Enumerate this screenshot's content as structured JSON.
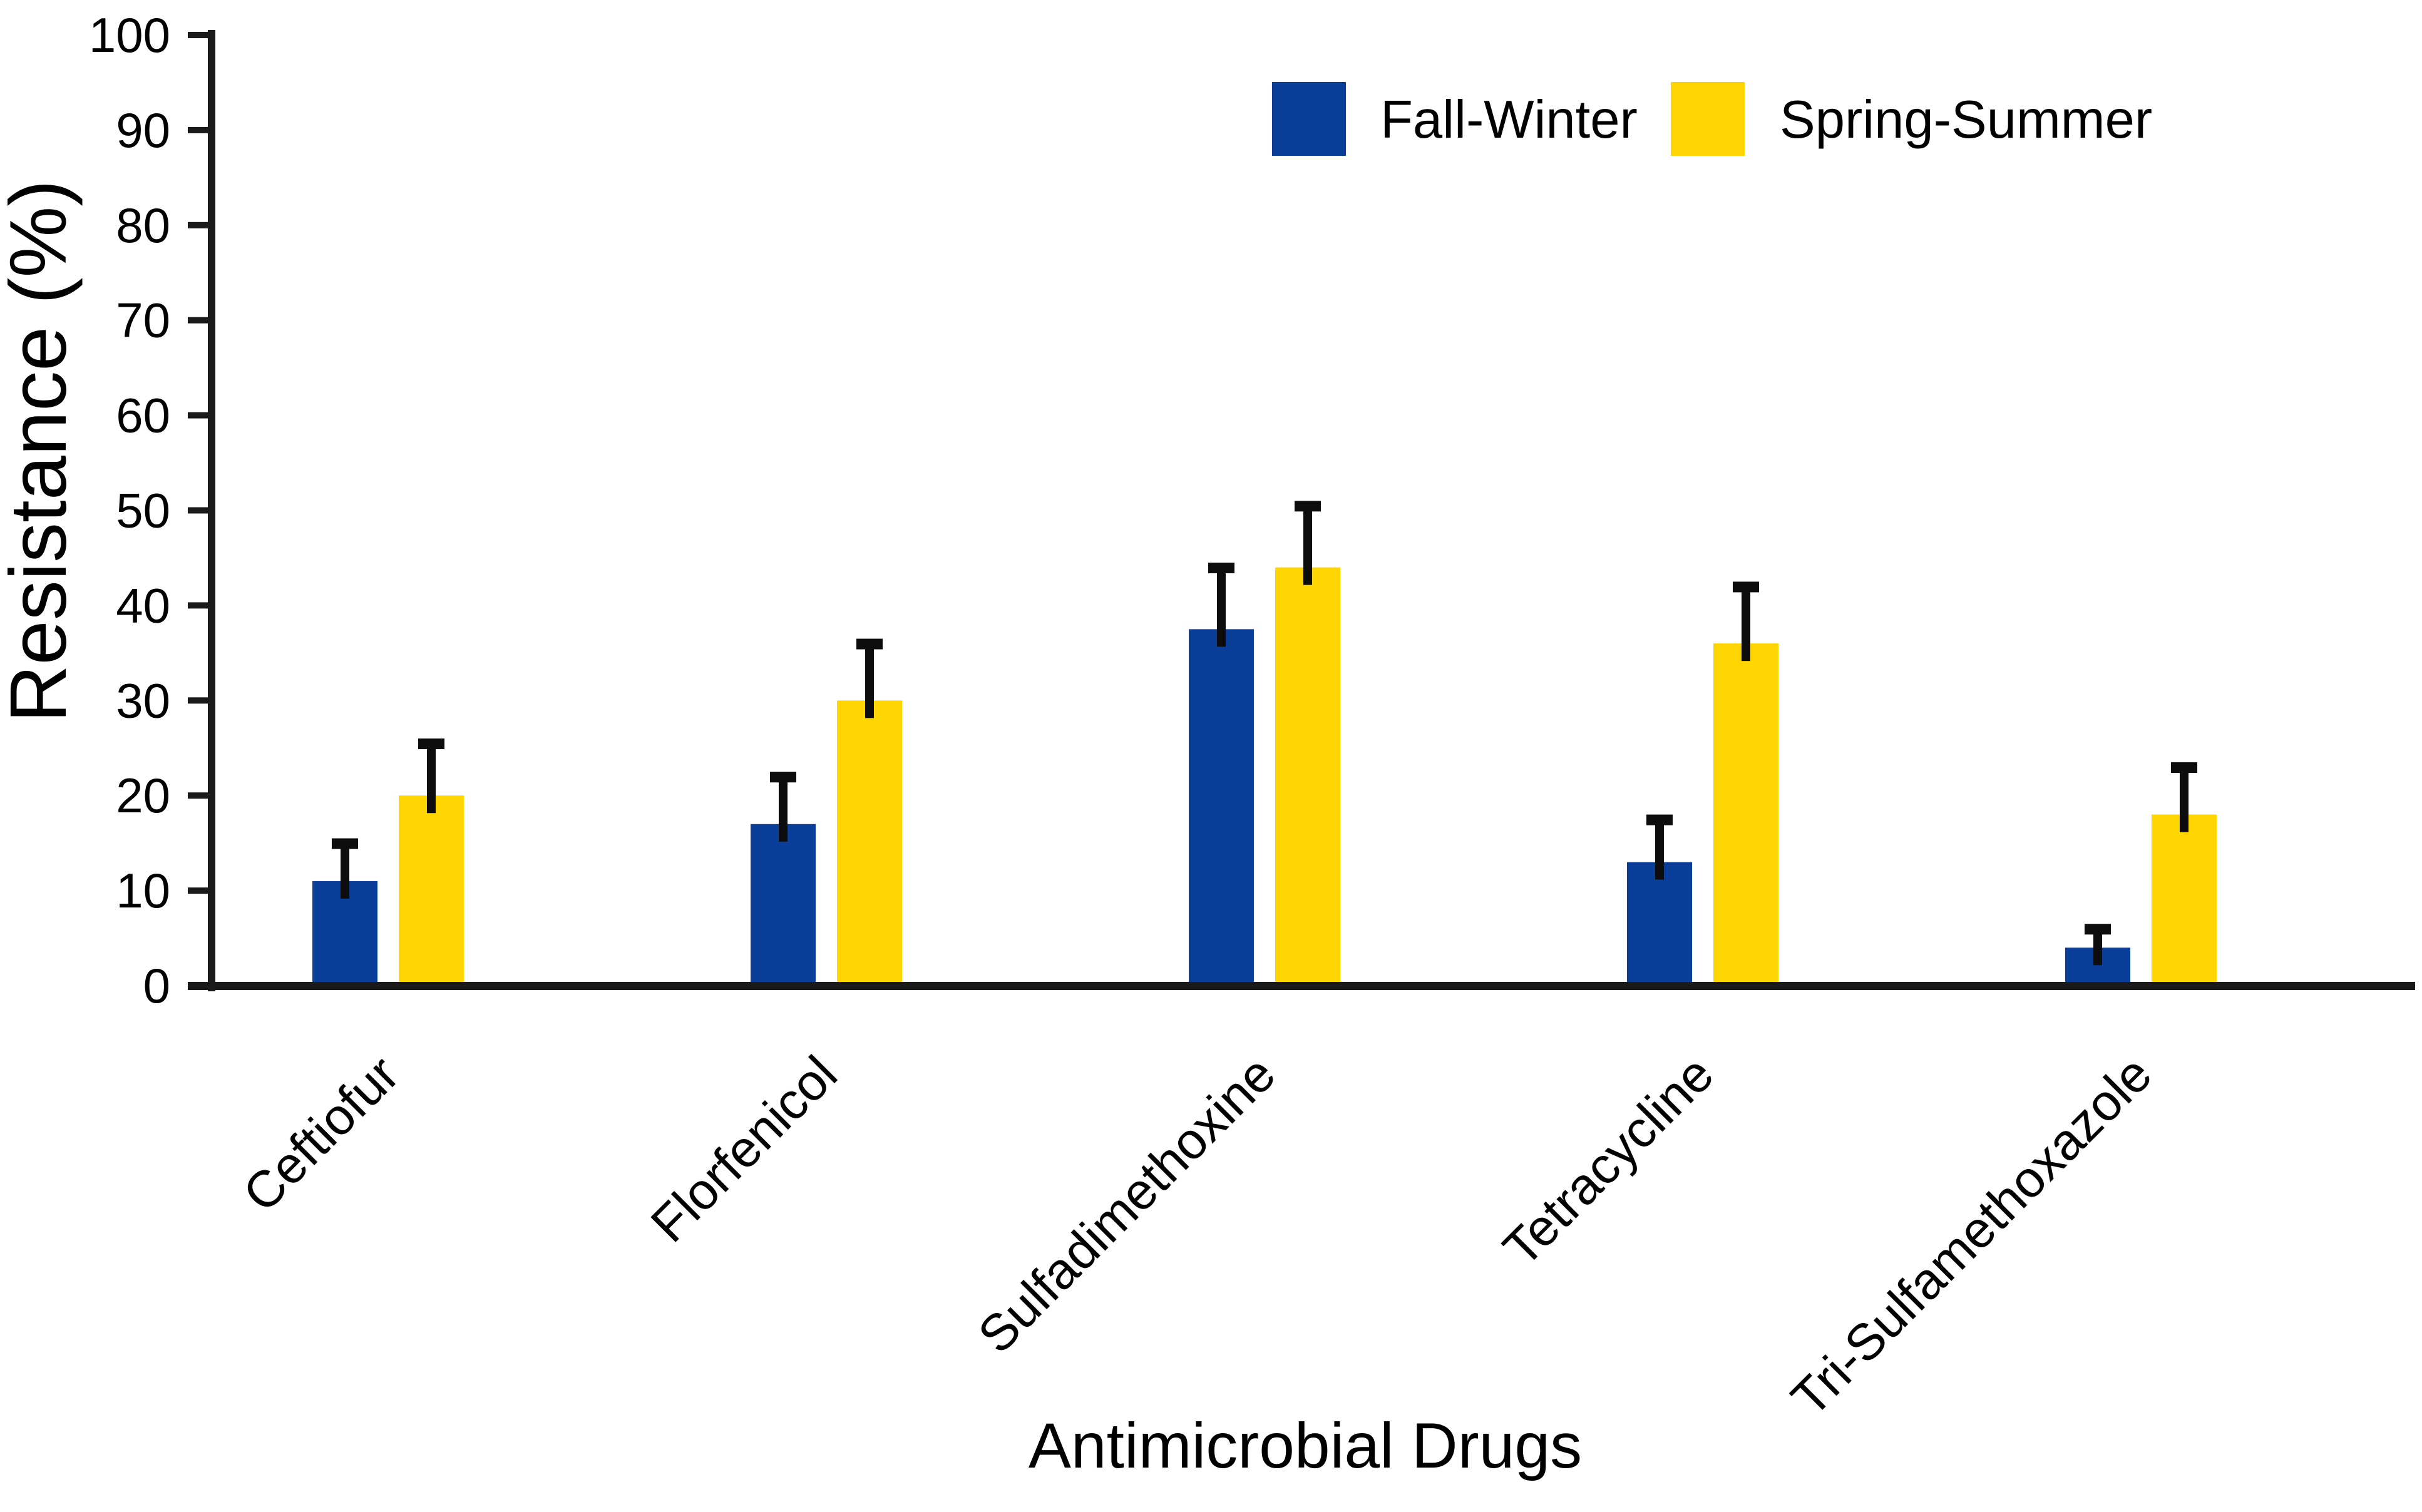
{
  "chart_data": {
    "type": "bar",
    "title": "",
    "xlabel": "Antimicrobial Drugs",
    "ylabel": "Resistance (%)",
    "ylim": [
      0,
      100
    ],
    "yticks": [
      0,
      10,
      20,
      30,
      40,
      50,
      60,
      70,
      80,
      90,
      100
    ],
    "grid": false,
    "legend_position": "top-right",
    "error_bars": "upper",
    "categories": [
      "Ceftiofur",
      "Florfenicol",
      "Sulfadimethoxine",
      "Tetracycline",
      "Tri-Sulfamethoxazole"
    ],
    "series": [
      {
        "name": "Fall-Winter",
        "color": "#0b3e98",
        "values": [
          11,
          17,
          37.5,
          13,
          4
        ],
        "errors_plus": [
          4.5,
          5.5,
          7,
          5,
          2.5
        ]
      },
      {
        "name": "Spring-Summer",
        "color": "#ffd500",
        "values": [
          20,
          30,
          44,
          36,
          18
        ],
        "errors_plus": [
          6,
          6.5,
          7,
          6.5,
          5.5
        ]
      }
    ],
    "axis_color": "#1a1a1a",
    "error_bar_color": "#0d0d0d",
    "background_color": "#ffffff"
  }
}
